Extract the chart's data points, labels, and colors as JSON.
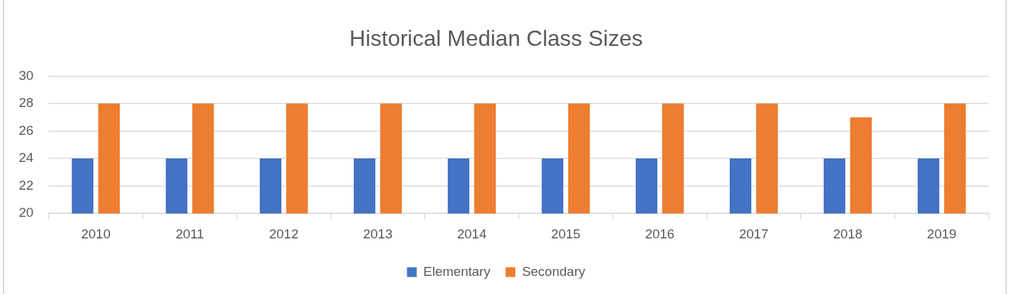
{
  "chart_data": {
    "type": "bar",
    "title": "Historical Median Class Sizes",
    "categories": [
      "2010",
      "2011",
      "2012",
      "2013",
      "2014",
      "2015",
      "2016",
      "2017",
      "2018",
      "2019"
    ],
    "series": [
      {
        "name": "Elementary",
        "color": "#4472c4",
        "values": [
          24,
          24,
          24,
          24,
          24,
          24,
          24,
          24,
          24,
          24
        ]
      },
      {
        "name": "Secondary",
        "color": "#ed7d31",
        "values": [
          28,
          28,
          28,
          28,
          28,
          28,
          28,
          28,
          27,
          28
        ]
      }
    ],
    "ylim": [
      20,
      30
    ],
    "yticks": [
      20,
      22,
      24,
      26,
      28,
      30
    ],
    "grid": "y",
    "legend": "bottom"
  }
}
